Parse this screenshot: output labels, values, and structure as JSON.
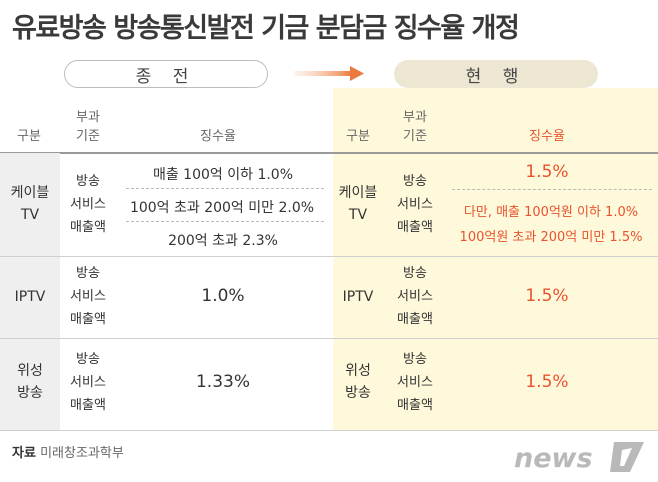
{
  "title": "유료방송 방송통신발전 기금 분담금 징수율 개정",
  "periods": {
    "old": "종 전",
    "new": "현 행"
  },
  "headers": {
    "category": "구분",
    "base": "부과\n기준",
    "rate": "징수율"
  },
  "rows": [
    {
      "category": "케이블\nTV",
      "base": "방송\n서비스\n매출액",
      "old_rates": [
        "매출 100억 이하 1.0%",
        "100억 초과 200억 미만 2.0%",
        "200억 초과 2.3%"
      ],
      "new_rate": "1.5%",
      "new_note_lines": [
        "다만, 매출 100억원 이하 1.0%",
        "100억원 초과 200억 미만 1.5%"
      ]
    },
    {
      "category": "IPTV",
      "base": "방송\n서비스\n매출액",
      "old_rate": "1.0%",
      "new_rate": "1.5%"
    },
    {
      "category": "위성\n방송",
      "base": "방송\n서비스\n매출액",
      "old_rate": "1.33%",
      "new_rate": "1.5%"
    }
  ],
  "source": {
    "label": "자료",
    "value": "미래창조과학부"
  },
  "logo_text": "news",
  "colors": {
    "accent": "#e8532d",
    "highlight": "#fff9dc",
    "pill_new": "#ece6d3",
    "logo": "#b9b9b9"
  }
}
